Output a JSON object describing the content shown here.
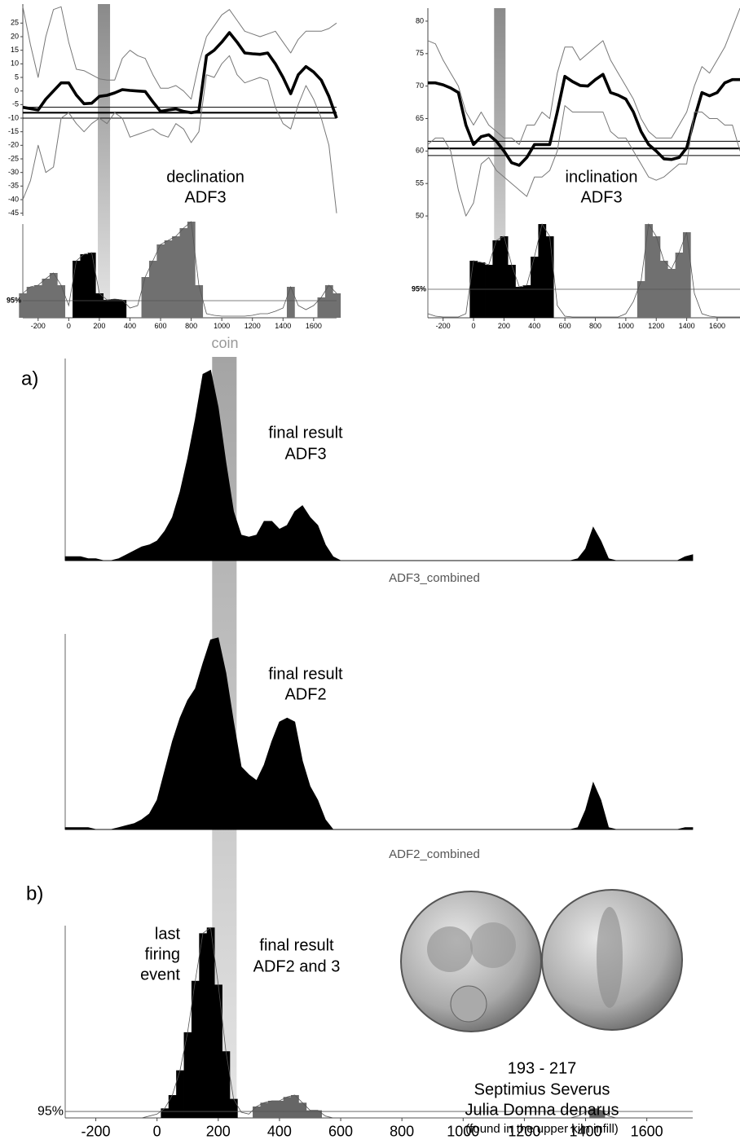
{
  "chart_data": [
    {
      "type": "line",
      "title_lines": [
        "declination",
        "ADF3"
      ],
      "x": [
        -300,
        -250,
        -200,
        -150,
        -100,
        -50,
        0,
        50,
        100,
        150,
        200,
        250,
        300,
        350,
        400,
        450,
        500,
        550,
        600,
        650,
        700,
        750,
        800,
        850,
        900,
        950,
        1000,
        1050,
        1100,
        1150,
        1200,
        1250,
        1300,
        1350,
        1400,
        1450,
        1500,
        1550,
        1600,
        1650,
        1700,
        1750
      ],
      "xlim": [
        -300,
        1750
      ],
      "ylim": [
        -46,
        32
      ],
      "yticks": [
        -45,
        -40,
        -35,
        -30,
        -25,
        -20,
        -15,
        -10,
        -5,
        0,
        5,
        10,
        15,
        20,
        25
      ],
      "band": [
        190,
        270
      ],
      "reference": {
        "value": -8,
        "range": [
          -10,
          -6
        ]
      },
      "series": [
        {
          "color": "#777777",
          "bold": false,
          "values": [
            31,
            17,
            5,
            20,
            30,
            31,
            18,
            8,
            7.5,
            6,
            4.5,
            4,
            4,
            12,
            15,
            13,
            12,
            6,
            1,
            1,
            2,
            0,
            -3,
            10,
            20,
            24,
            28,
            30,
            26,
            22,
            21,
            20,
            21,
            22,
            18,
            14,
            19,
            22,
            22,
            22,
            23,
            25
          ]
        },
        {
          "color": "#000000",
          "bold": true,
          "values": [
            -6,
            -6.5,
            -7,
            -3,
            0,
            3,
            3,
            -1.5,
            -4.7,
            -4.5,
            -2,
            -1.6,
            -0.7,
            0.5,
            0.2,
            0,
            -0.2,
            -4,
            -7.5,
            -7,
            -6.6,
            -7.5,
            -8,
            -7.5,
            13,
            15,
            18,
            21.5,
            18,
            14,
            13.7,
            13.5,
            14,
            10,
            5,
            -1,
            6,
            9,
            7,
            4,
            -2,
            -10
          ]
        },
        {
          "color": "#777777",
          "bold": false,
          "values": [
            -40,
            -33,
            -20,
            -30,
            -28,
            -10,
            -8,
            -12,
            -15,
            -12,
            -10,
            -12,
            -8,
            -10,
            -17,
            -16,
            -15,
            -14,
            -16,
            -17,
            -12,
            -14,
            -19,
            -15,
            6,
            5,
            10,
            13,
            6,
            3,
            4,
            5,
            4,
            -6,
            -12,
            -14,
            -5,
            2,
            -3,
            -10,
            -20,
            -45
          ]
        }
      ]
    },
    {
      "type": "area",
      "x": [
        -300,
        -250,
        -200,
        -150,
        -100,
        -50,
        0,
        50,
        100,
        150,
        200,
        250,
        300,
        350,
        400,
        450,
        500,
        550,
        600,
        650,
        700,
        750,
        800,
        850,
        900,
        950,
        1000,
        1050,
        1100,
        1150,
        1200,
        1250,
        1300,
        1350,
        1400,
        1450,
        1500,
        1550,
        1600,
        1650,
        1700,
        1750
      ],
      "values": [
        30,
        38,
        40,
        48,
        55,
        40,
        15,
        70,
        78,
        80,
        30,
        22,
        23,
        22,
        12,
        15,
        50,
        70,
        90,
        95,
        100,
        110,
        118,
        40,
        5,
        3,
        2,
        2,
        2,
        2,
        3,
        5,
        5,
        8,
        12,
        38,
        15,
        10,
        15,
        25,
        40,
        30
      ],
      "xlim": [
        -300,
        1750
      ],
      "ylim": [
        0,
        115
      ],
      "xticks": [
        -200,
        0,
        200,
        400,
        600,
        800,
        1000,
        1200,
        1400,
        1600
      ],
      "threshold": {
        "value": 21,
        "label": "95%"
      },
      "highlight": [
        25,
        375
      ],
      "highlight_color": "#000000",
      "color": "#707070"
    },
    {
      "type": "line",
      "title_lines": [
        "inclination",
        "ADF3"
      ],
      "x": [
        -300,
        -250,
        -200,
        -150,
        -100,
        -50,
        0,
        50,
        100,
        150,
        200,
        250,
        300,
        350,
        400,
        450,
        500,
        550,
        600,
        650,
        700,
        750,
        800,
        850,
        900,
        950,
        1000,
        1050,
        1100,
        1150,
        1200,
        1250,
        1300,
        1350,
        1400,
        1450,
        1500,
        1550,
        1600,
        1650,
        1700,
        1750
      ],
      "xlim": [
        -300,
        1750
      ],
      "ylim": [
        48,
        82
      ],
      "yticks": [
        50,
        55,
        60,
        65,
        70,
        75,
        80
      ],
      "band": [
        135,
        210
      ],
      "reference": {
        "value": 60.4,
        "range": [
          59.3,
          61.5
        ]
      },
      "series": [
        {
          "color": "#777777",
          "bold": false,
          "values": [
            77,
            76.5,
            74,
            72,
            70,
            66,
            64,
            66,
            64,
            63,
            62,
            62,
            61,
            64,
            64,
            66,
            65,
            72,
            76,
            76,
            74,
            75,
            76,
            77,
            74,
            72,
            70,
            68,
            65,
            63,
            62,
            62,
            62,
            64,
            66,
            70,
            73,
            72,
            74,
            76,
            79,
            82
          ]
        },
        {
          "color": "#000000",
          "bold": true,
          "values": [
            70.5,
            70.5,
            70.2,
            69.7,
            69,
            64,
            61,
            62.2,
            62.5,
            61.5,
            60,
            58.2,
            57.8,
            59,
            61,
            61,
            61,
            66,
            71.5,
            70.7,
            70.1,
            70,
            71,
            71.8,
            69,
            68.6,
            68,
            66,
            63,
            61,
            60,
            58.8,
            58.7,
            59,
            60.5,
            65,
            69,
            68.5,
            69,
            70.5,
            71,
            71
          ]
        },
        {
          "color": "#777777",
          "bold": false,
          "values": [
            61,
            62,
            62,
            60,
            54,
            50,
            52,
            58,
            59,
            57,
            56,
            55,
            54,
            53,
            56,
            56,
            57,
            60,
            67,
            66,
            66,
            66,
            66,
            66,
            63,
            62,
            62,
            60,
            58,
            56,
            55.5,
            56,
            57,
            58,
            58,
            66,
            66,
            65,
            65,
            64,
            64,
            60
          ]
        }
      ]
    },
    {
      "type": "area",
      "x": [
        -300,
        -250,
        -200,
        -150,
        -100,
        -50,
        0,
        50,
        100,
        150,
        200,
        250,
        300,
        350,
        400,
        450,
        500,
        550,
        600,
        650,
        700,
        750,
        800,
        850,
        900,
        950,
        1000,
        1050,
        1100,
        1150,
        1200,
        1250,
        1300,
        1350,
        1400,
        1450,
        1500,
        1550,
        1600,
        1650,
        1700,
        1750
      ],
      "values": [
        5,
        2,
        1,
        1,
        1,
        5,
        70,
        68,
        65,
        95,
        100,
        65,
        38,
        40,
        75,
        115,
        100,
        15,
        2,
        1,
        1,
        1,
        1,
        1,
        1,
        1,
        5,
        20,
        45,
        115,
        100,
        70,
        60,
        80,
        105,
        30,
        5,
        2,
        1,
        1,
        1,
        1
      ],
      "xlim": [
        -300,
        1750
      ],
      "ylim": [
        0,
        120
      ],
      "xticks": [
        -200,
        0,
        200,
        400,
        600,
        800,
        1000,
        1200,
        1400,
        1600
      ],
      "threshold": {
        "value": 35,
        "label": "95%"
      },
      "highlight": [
        -25,
        525
      ],
      "highlight_color": "#000000",
      "color": "#707070"
    },
    {
      "type": "area",
      "panel_label": "a)",
      "band_label": "coin",
      "coin_range": [
        180,
        260
      ],
      "title_lines": [
        "final result",
        "ADF3"
      ],
      "xlabel": "ADF3_combined",
      "x": [
        -300,
        -275,
        -250,
        -225,
        -200,
        -175,
        -150,
        -125,
        -100,
        -75,
        -50,
        -25,
        0,
        25,
        50,
        75,
        100,
        125,
        150,
        175,
        200,
        225,
        250,
        275,
        300,
        325,
        350,
        375,
        400,
        425,
        450,
        475,
        500,
        525,
        550,
        575,
        600,
        625,
        650,
        675,
        700,
        725,
        750,
        775,
        800,
        825,
        850,
        875,
        900,
        925,
        950,
        975,
        1000,
        1025,
        1050,
        1075,
        1100,
        1125,
        1150,
        1175,
        1200,
        1225,
        1250,
        1275,
        1300,
        1325,
        1350,
        1375,
        1400,
        1425,
        1450,
        1475,
        1500,
        1525,
        1550,
        1575,
        1600,
        1625,
        1650,
        1675,
        1700,
        1725,
        1750
      ],
      "values": [
        2,
        2,
        2,
        1,
        1,
        0,
        0,
        1,
        3,
        5,
        7,
        8,
        10,
        15,
        22,
        35,
        52,
        72,
        95,
        97,
        78,
        50,
        25,
        13,
        12,
        13,
        20,
        20,
        16,
        18,
        25,
        28,
        22,
        18,
        8,
        2,
        0,
        0,
        0,
        0,
        0,
        0,
        0,
        0,
        0,
        0,
        0,
        0,
        0,
        0,
        0,
        0,
        0,
        0,
        0,
        0,
        0,
        0,
        0,
        0,
        0,
        0,
        0,
        0,
        0,
        0,
        0,
        1,
        6,
        17,
        10,
        1,
        0,
        0,
        0,
        0,
        0,
        0,
        0,
        0,
        0,
        2,
        3
      ],
      "xlim": [
        -300,
        1750
      ],
      "ylim": [
        0,
        103
      ],
      "color": "#000000"
    },
    {
      "type": "area",
      "title_lines": [
        "final result",
        "ADF2"
      ],
      "xlabel": "ADF2_combined",
      "x": [
        -300,
        -275,
        -250,
        -225,
        -200,
        -175,
        -150,
        -125,
        -100,
        -75,
        -50,
        -25,
        0,
        25,
        50,
        75,
        100,
        125,
        150,
        175,
        200,
        225,
        250,
        275,
        300,
        325,
        350,
        375,
        400,
        425,
        450,
        475,
        500,
        525,
        550,
        575,
        600,
        625,
        650,
        675,
        700,
        725,
        750,
        775,
        800,
        825,
        850,
        875,
        900,
        925,
        950,
        975,
        1000,
        1025,
        1050,
        1075,
        1100,
        1125,
        1150,
        1175,
        1200,
        1225,
        1250,
        1275,
        1300,
        1325,
        1350,
        1375,
        1400,
        1425,
        1450,
        1475,
        1500,
        1525,
        1550,
        1575,
        1600,
        1625,
        1650,
        1675,
        1700,
        1725,
        1750
      ],
      "values": [
        1,
        1,
        1,
        1,
        0,
        0,
        0,
        1,
        2,
        3,
        5,
        8,
        15,
        30,
        45,
        57,
        66,
        72,
        85,
        97,
        98,
        80,
        55,
        32,
        28,
        25,
        33,
        45,
        55,
        57,
        55,
        35,
        22,
        15,
        5,
        0,
        0,
        0,
        0,
        0,
        0,
        0,
        0,
        0,
        0,
        0,
        0,
        0,
        0,
        0,
        0,
        0,
        0,
        0,
        0,
        0,
        0,
        0,
        0,
        0,
        0,
        0,
        0,
        0,
        0,
        0,
        0,
        1,
        10,
        24,
        15,
        1,
        0,
        0,
        0,
        0,
        0,
        0,
        0,
        0,
        0,
        1,
        1
      ],
      "xlim": [
        -300,
        1750
      ],
      "ylim": [
        0,
        100
      ],
      "color": "#000000"
    },
    {
      "type": "area",
      "panel_label": "b)",
      "annotation_left": [
        "last",
        "firing",
        "event"
      ],
      "annotation_right": [
        "final result",
        "ADF2 and 3"
      ],
      "caption": [
        "193 - 217",
        "Septimius Severus",
        "Julia Domna denarus",
        "(found in the upper kiln infill)"
      ],
      "x": [
        -300,
        -275,
        -250,
        -225,
        -200,
        -175,
        -150,
        -125,
        -100,
        -75,
        -50,
        -25,
        0,
        25,
        50,
        75,
        100,
        125,
        150,
        175,
        200,
        225,
        250,
        275,
        300,
        325,
        350,
        375,
        400,
        425,
        450,
        475,
        500,
        525,
        550,
        575,
        600,
        625,
        650,
        675,
        700,
        725,
        750,
        775,
        800,
        825,
        850,
        875,
        900,
        925,
        950,
        975,
        1000,
        1025,
        1050,
        1075,
        1100,
        1125,
        1150,
        1175,
        1200,
        1225,
        1250,
        1275,
        1300,
        1325,
        1350,
        1375,
        1400,
        1425,
        1450,
        1475,
        1500,
        1525,
        1550,
        1575,
        1600,
        1625,
        1650,
        1675,
        1700,
        1725,
        1750
      ],
      "values": [
        0,
        0,
        0,
        0,
        0,
        0,
        0,
        0,
        0,
        0,
        0,
        1,
        2,
        5,
        12,
        25,
        45,
        72,
        97,
        100,
        70,
        35,
        10,
        3,
        2,
        6,
        8,
        9,
        9,
        11,
        12,
        8,
        4,
        4,
        1,
        0,
        0,
        0,
        0,
        0,
        0,
        0,
        0,
        0,
        0,
        0,
        0,
        0,
        0,
        0,
        0,
        0,
        0,
        0,
        0,
        0,
        0,
        0,
        0,
        0,
        0,
        0,
        0,
        0,
        0,
        0,
        0,
        1,
        3,
        5,
        4,
        1,
        0,
        0,
        0,
        0,
        0,
        0,
        0,
        0,
        0,
        0,
        0
      ],
      "xlim": [
        -300,
        1750
      ],
      "ylim": [
        0,
        101
      ],
      "xticks": [
        -200,
        0,
        200,
        400,
        600,
        800,
        1000,
        1200,
        1400,
        1600
      ],
      "threshold": {
        "value": 3.4,
        "label": "95%"
      },
      "highlight": [
        10,
        255
      ],
      "highlight_color": "#000000",
      "color": "#666666"
    }
  ]
}
